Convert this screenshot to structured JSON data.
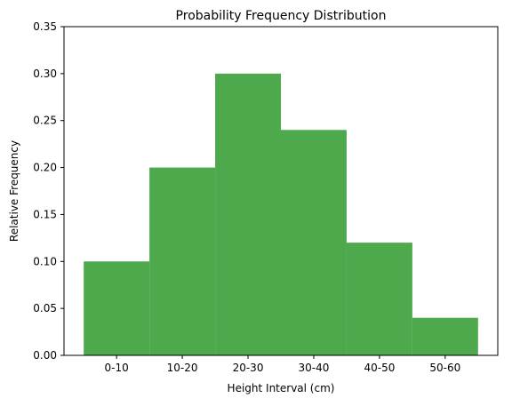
{
  "chart_data": {
    "type": "bar",
    "title": "Probability Frequency Distribution",
    "xlabel": "Height Interval (cm)",
    "ylabel": "Relative Frequency",
    "categories": [
      "0-10",
      "10-20",
      "20-30",
      "30-40",
      "40-50",
      "50-60"
    ],
    "values": [
      0.1,
      0.2,
      0.3,
      0.24,
      0.12,
      0.04
    ],
    "ylim": [
      0,
      0.35
    ],
    "yticks": [
      "0.00",
      "0.05",
      "0.10",
      "0.15",
      "0.20",
      "0.25",
      "0.30",
      "0.35"
    ],
    "bar_color": "#4ea84c",
    "grid": false,
    "legend": "none"
  }
}
